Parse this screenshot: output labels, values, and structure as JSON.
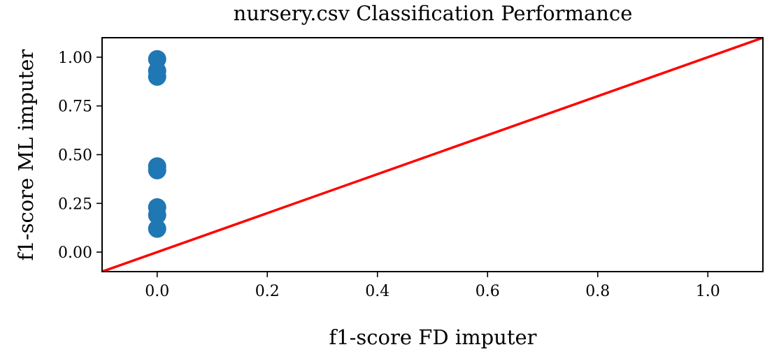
{
  "chart_data": {
    "type": "scatter",
    "title": "nursery.csv Classification Performance",
    "xlabel": "f1-score FD imputer",
    "ylabel": "f1-score ML imputer",
    "xlim": [
      -0.1,
      1.1
    ],
    "ylim": [
      -0.1,
      1.1
    ],
    "xticks": [
      "0.0",
      "0.2",
      "0.4",
      "0.6",
      "0.8",
      "1.0"
    ],
    "yticks": [
      "0.00",
      "0.25",
      "0.50",
      "0.75",
      "1.00"
    ],
    "xtick_values": [
      0.0,
      0.2,
      0.4,
      0.6,
      0.8,
      1.0
    ],
    "ytick_values": [
      0.0,
      0.25,
      0.5,
      0.75,
      1.0
    ],
    "grid": false,
    "points": [
      {
        "x": 0.0,
        "y": 0.99
      },
      {
        "x": 0.0,
        "y": 0.93
      },
      {
        "x": 0.0,
        "y": 0.9
      },
      {
        "x": 0.0,
        "y": 0.44
      },
      {
        "x": 0.0,
        "y": 0.42
      },
      {
        "x": 0.0,
        "y": 0.23
      },
      {
        "x": 0.0,
        "y": 0.19
      },
      {
        "x": 0.0,
        "y": 0.12
      }
    ],
    "reference_line": {
      "x": [
        -0.1,
        1.1
      ],
      "y": [
        -0.1,
        1.1
      ]
    },
    "colors": {
      "points": "#1f77b4",
      "reference_line": "#ff0000"
    }
  }
}
